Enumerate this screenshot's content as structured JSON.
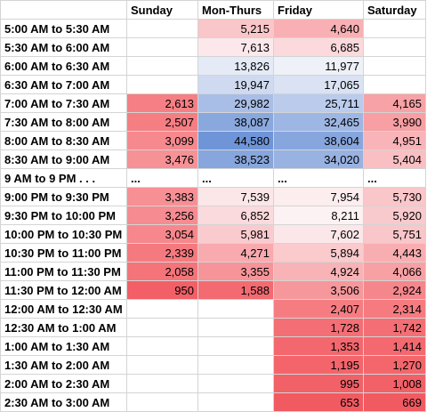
{
  "headers": [
    "",
    "Sunday",
    "Mon-Thurs",
    "Friday",
    "Saturday"
  ],
  "rows": [
    {
      "label": "5:00 AM to 5:30 AM",
      "cells": [
        "",
        "5,215",
        "4,640",
        ""
      ],
      "colors": [
        "#ffffff",
        "#f9c6c9",
        "#f8b0b4",
        "#ffffff"
      ]
    },
    {
      "label": "5:30 AM to 6:00 AM",
      "cells": [
        "",
        "7,613",
        "6,685",
        ""
      ],
      "colors": [
        "#ffffff",
        "#fce8ea",
        "#fbd9dc",
        "#ffffff"
      ]
    },
    {
      "label": "6:00 AM to 6:30 AM",
      "cells": [
        "",
        "13,826",
        "11,977",
        ""
      ],
      "colors": [
        "#ffffff",
        "#e4eaf6",
        "#eef1f8",
        "#ffffff"
      ]
    },
    {
      "label": "6:30 AM to 7:00 AM",
      "cells": [
        "",
        "19,947",
        "17,065",
        ""
      ],
      "colors": [
        "#ffffff",
        "#cfdaf0",
        "#dae2f3",
        "#ffffff"
      ]
    },
    {
      "label": "7:00 AM to 7:30 AM",
      "cells": [
        "2,613",
        "29,982",
        "25,711",
        "4,165"
      ],
      "colors": [
        "#f57f84",
        "#a8bee6",
        "#bacbeb",
        "#f7a2a6"
      ]
    },
    {
      "label": "7:30 AM to 8:00 AM",
      "cells": [
        "2,507",
        "38,087",
        "32,465",
        "3,990"
      ],
      "colors": [
        "#f57e83",
        "#89a8de",
        "#9db6e3",
        "#f79fa3"
      ]
    },
    {
      "label": "8:00 AM to 8:30 AM",
      "cells": [
        "3,099",
        "44,580",
        "38,604",
        "4,951"
      ],
      "colors": [
        "#f6898e",
        "#6f95d8",
        "#87a6dd",
        "#f8b4b8"
      ]
    },
    {
      "label": "8:30 AM to 9:00 AM",
      "cells": [
        "3,476",
        "38,523",
        "34,020",
        "5,404"
      ],
      "colors": [
        "#f69196",
        "#87a6dd",
        "#98b2e1",
        "#f9bfc2"
      ]
    },
    {
      "label": "9 AM to 9 PM . . .",
      "cells": [
        "...",
        "...",
        "...",
        "..."
      ],
      "colors": [
        "#ffffff",
        "#ffffff",
        "#ffffff",
        "#ffffff"
      ],
      "gap": true
    },
    {
      "label": "9:00 PM to 9:30 PM",
      "cells": [
        "3,383",
        "7,539",
        "7,954",
        "5,730"
      ],
      "colors": [
        "#f69095",
        "#fbe6e8",
        "#fcedef",
        "#f9c6c9"
      ]
    },
    {
      "label": "9:30 PM to 10:00 PM",
      "cells": [
        "3,256",
        "6,852",
        "8,211",
        "5,920"
      ],
      "colors": [
        "#f68c91",
        "#fbdadd",
        "#fdf2f3",
        "#f9cacd"
      ]
    },
    {
      "label": "10:00 PM to 10:30 PM",
      "cells": [
        "3,054",
        "5,981",
        "7,602",
        "5,751"
      ],
      "colors": [
        "#f6888d",
        "#facbce",
        "#fbe7e9",
        "#f9c6c9"
      ]
    },
    {
      "label": "10:30 PM to 11:00 PM",
      "cells": [
        "2,339",
        "4,271",
        "5,894",
        "4,443"
      ],
      "colors": [
        "#f57a7f",
        "#f8aaae",
        "#facacd",
        "#f8aeb1"
      ]
    },
    {
      "label": "11:00 PM to 11:30 PM",
      "cells": [
        "2,058",
        "3,355",
        "4,924",
        "4,066"
      ],
      "colors": [
        "#f4747a",
        "#f69499",
        "#f8b3b7",
        "#f7a1a5"
      ]
    },
    {
      "label": "11:30 PM to 12:00 AM",
      "cells": [
        "950",
        "1,588",
        "3,506",
        "2,924"
      ],
      "colors": [
        "#f25f66",
        "#f36b71",
        "#f6979b",
        "#f5878c"
      ]
    },
    {
      "label": "12:00 AM to 12:30 AM",
      "cells": [
        "",
        "",
        "2,407",
        "2,314"
      ],
      "colors": [
        "#ffffff",
        "#ffffff",
        "#f57d82",
        "#f57b80"
      ]
    },
    {
      "label": "12:30 AM to 1:00 AM",
      "cells": [
        "",
        "",
        "1,728",
        "1,742"
      ],
      "colors": [
        "#ffffff",
        "#ffffff",
        "#f46f75",
        "#f46f75"
      ]
    },
    {
      "label": "1:00 AM to 1:30 AM",
      "cells": [
        "",
        "",
        "1,353",
        "1,414"
      ],
      "colors": [
        "#ffffff",
        "#ffffff",
        "#f3686e",
        "#f3696f"
      ]
    },
    {
      "label": "1:30 AM to 2:00 AM",
      "cells": [
        "",
        "",
        "1,195",
        "1,270"
      ],
      "colors": [
        "#ffffff",
        "#ffffff",
        "#f3656b",
        "#f3666c"
      ]
    },
    {
      "label": "2:00 AM to 2:30 AM",
      "cells": [
        "",
        "",
        "995",
        "1,008"
      ],
      "colors": [
        "#ffffff",
        "#ffffff",
        "#f26167",
        "#f26167"
      ]
    },
    {
      "label": "2:30 AM to 3:00 AM",
      "cells": [
        "",
        "",
        "653",
        "669"
      ],
      "colors": [
        "#ffffff",
        "#ffffff",
        "#f25a61",
        "#f25a61"
      ]
    }
  ]
}
